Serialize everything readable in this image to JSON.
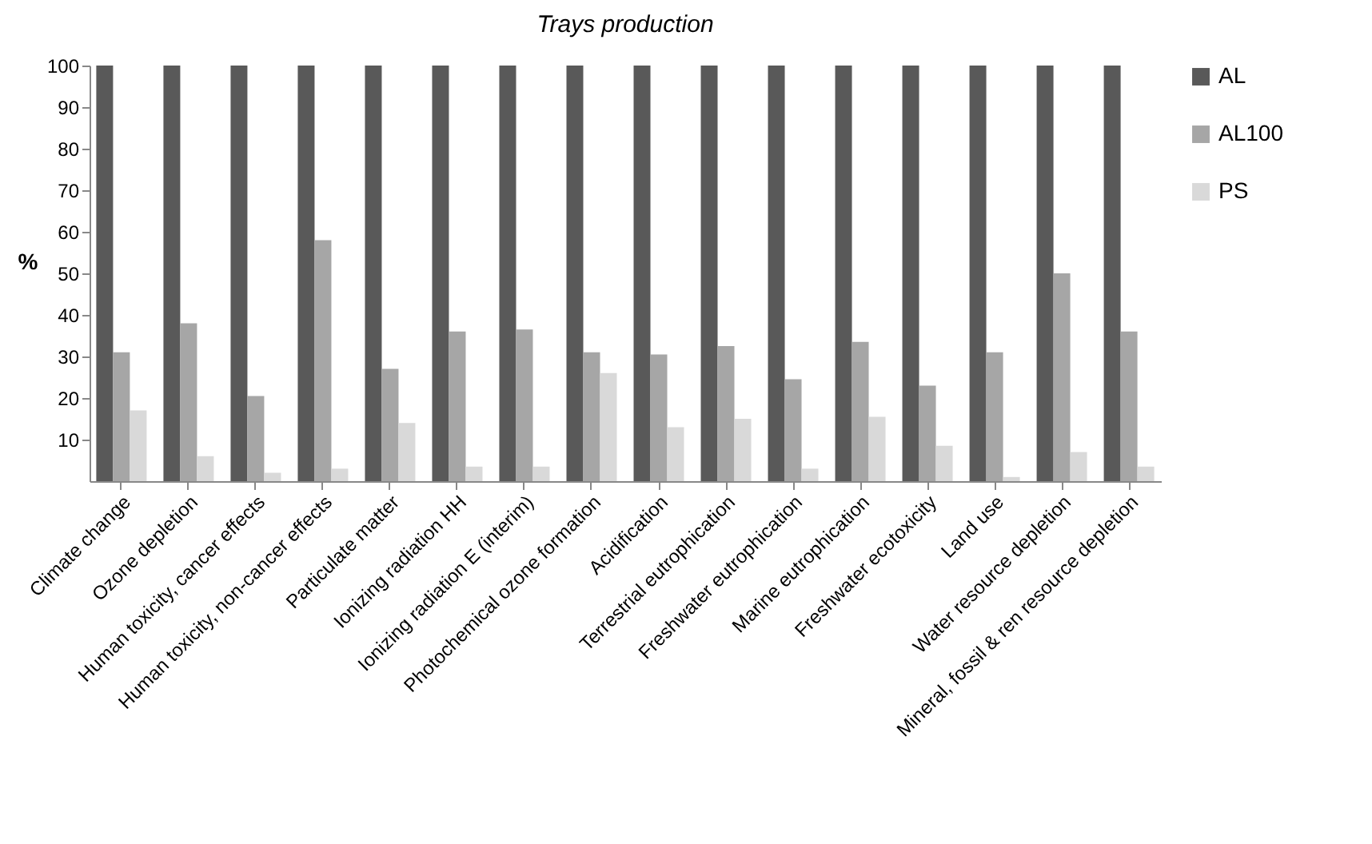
{
  "chart_data": {
    "type": "bar",
    "title": "Trays production",
    "ylabel": "%",
    "categories": [
      "Climate change",
      "Ozone depletion",
      "Human toxicity, cancer effects",
      "Human toxicity, non-cancer effects",
      "Particulate matter",
      "Ionizing radiation HH",
      "Ionizing radiation E (interim)",
      "Photochemical ozone formation",
      "Acidification",
      "Terrestrial eutrophication",
      "Freshwater eutrophication",
      "Marine eutrophication",
      "Freshwater ecotoxicity",
      "Land use",
      "Water resource depletion",
      "Mineral, fossil & ren resource depletion"
    ],
    "series": [
      {
        "name": "AL",
        "color": "#595959",
        "values": [
          100,
          100,
          100,
          100,
          100,
          100,
          100,
          100,
          100,
          100,
          100,
          100,
          100,
          100,
          100,
          100
        ]
      },
      {
        "name": "AL100",
        "color": "#a6a6a6",
        "values": [
          31,
          38,
          20.5,
          58,
          27,
          36,
          36.5,
          31,
          30.5,
          32.5,
          24.5,
          33.5,
          23,
          31,
          50,
          36
        ]
      },
      {
        "name": "PS",
        "color": "#d9d9d9",
        "values": [
          17,
          6,
          2,
          3,
          14,
          3.5,
          3.5,
          26,
          13,
          15,
          3,
          15.5,
          8.5,
          1,
          7,
          3.5
        ]
      }
    ],
    "ylim": [
      0,
      100
    ],
    "yticks": [
      10,
      20,
      30,
      40,
      50,
      60,
      70,
      80,
      90,
      100
    ],
    "grid": false,
    "legend": "right"
  }
}
